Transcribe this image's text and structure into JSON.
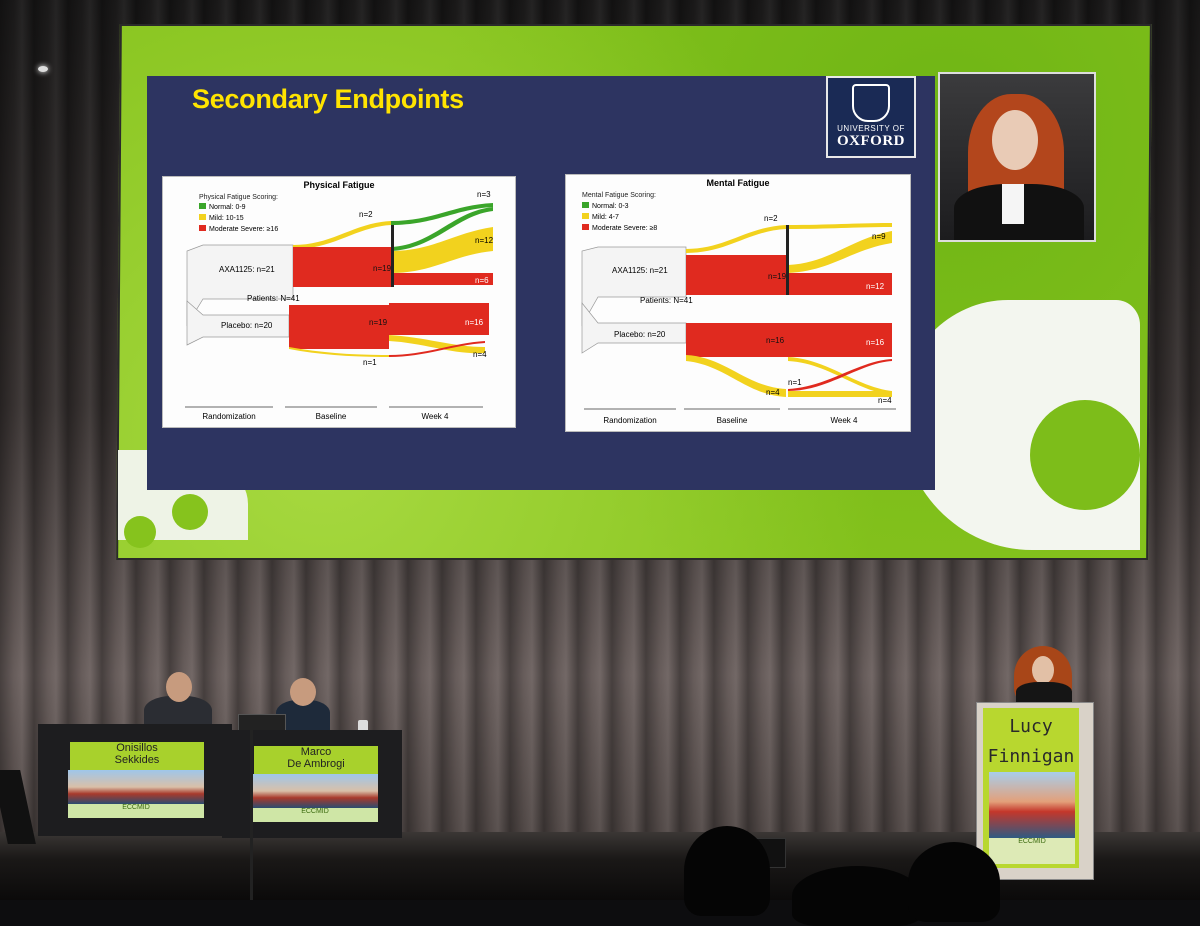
{
  "slide": {
    "title": "Secondary Endpoints",
    "logo_line1": "UNIVERSITY OF",
    "logo_line2": "OXFORD"
  },
  "chart_left": {
    "title": "Physical Fatigue",
    "scoring_heading": "Physical Fatigue Scoring:",
    "legend": [
      {
        "label": "Normal: 0-9",
        "color": "#3aa52a"
      },
      {
        "label": "Mild: 10-15",
        "color": "#f2d21e"
      },
      {
        "label": "Moderate Severe: ≥16",
        "color": "#e02a1f"
      }
    ],
    "groups": {
      "treatment": "AXA1125: n=21",
      "patients": "Patients: N=41",
      "placebo": "Placebo: n=20"
    },
    "baseline": {
      "treat_red": "n=19",
      "treat_yellow": "n=2",
      "placebo_red": "n=19",
      "placebo_yellow": "n=1"
    },
    "week4": {
      "green": "n=3",
      "yellow": "n=12",
      "red": "n=6",
      "placebo_red": "n=16",
      "placebo_yellow": "n=4"
    },
    "axis": {
      "randomization": "Randomization",
      "baseline": "Baseline",
      "week4": "Week 4"
    }
  },
  "chart_right": {
    "title": "Mental Fatigue",
    "scoring_heading": "Mental Fatigue Scoring:",
    "legend": [
      {
        "label": "Normal: 0-3",
        "color": "#3aa52a"
      },
      {
        "label": "Mild: 4-7",
        "color": "#f2d21e"
      },
      {
        "label": "Moderate Severe: ≥8",
        "color": "#e02a1f"
      }
    ],
    "groups": {
      "treatment": "AXA1125: n=21",
      "patients": "Patients: N=41",
      "placebo": "Placebo: n=20"
    },
    "baseline": {
      "treat_red": "n=19",
      "treat_yellow": "n=2",
      "placebo_red": "n=16",
      "placebo_yellow": "n=4"
    },
    "week4": {
      "yellow": "n=9",
      "red": "n=12",
      "placebo_red": "n=16",
      "placebo_mid": "n=1",
      "placebo_yellow": "n=4"
    },
    "axis": {
      "randomization": "Randomization",
      "baseline": "Baseline",
      "week4": "Week 4"
    }
  },
  "panel": {
    "left_name_1": "Onisillos",
    "left_name_2": "Sekkides",
    "right_name_1": "Marco",
    "right_name_2": "De Ambrogi",
    "desk_brand": "ECCMID"
  },
  "podium": {
    "name_1": "Lucy",
    "name_2": "Finnigan",
    "brand": "ECCMID"
  }
}
